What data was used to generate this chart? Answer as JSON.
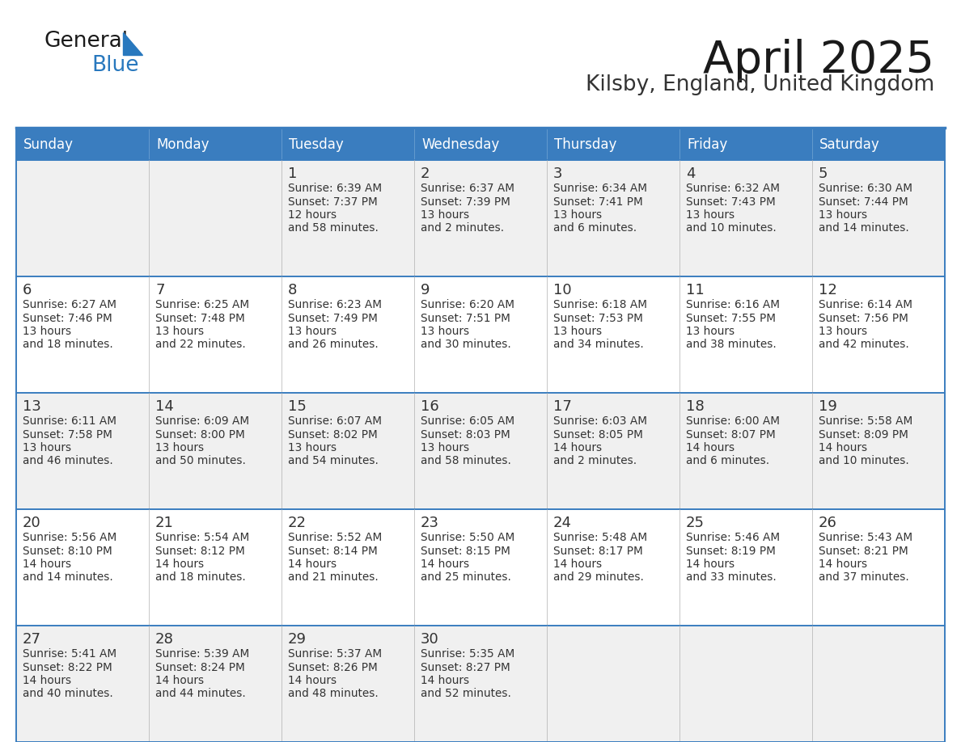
{
  "title": "April 2025",
  "subtitle": "Kilsby, England, United Kingdom",
  "days_of_week": [
    "Sunday",
    "Monday",
    "Tuesday",
    "Wednesday",
    "Thursday",
    "Friday",
    "Saturday"
  ],
  "header_bg": "#3a7dbf",
  "header_text_color": "#ffffff",
  "row_bg_odd": "#f0f0f0",
  "row_bg_even": "#ffffff",
  "cell_text_color": "#333333",
  "border_color": "#3a7dbf",
  "title_color": "#1a1a1a",
  "subtitle_color": "#333333",
  "logo_general_color": "#1a1a1a",
  "logo_blue_color": "#2878be",
  "calendar_data": [
    [
      null,
      null,
      {
        "day": 1,
        "sunrise": "6:39 AM",
        "sunset": "7:37 PM",
        "daylight": "12 hours and 58 minutes."
      },
      {
        "day": 2,
        "sunrise": "6:37 AM",
        "sunset": "7:39 PM",
        "daylight": "13 hours and 2 minutes."
      },
      {
        "day": 3,
        "sunrise": "6:34 AM",
        "sunset": "7:41 PM",
        "daylight": "13 hours and 6 minutes."
      },
      {
        "day": 4,
        "sunrise": "6:32 AM",
        "sunset": "7:43 PM",
        "daylight": "13 hours and 10 minutes."
      },
      {
        "day": 5,
        "sunrise": "6:30 AM",
        "sunset": "7:44 PM",
        "daylight": "13 hours and 14 minutes."
      }
    ],
    [
      {
        "day": 6,
        "sunrise": "6:27 AM",
        "sunset": "7:46 PM",
        "daylight": "13 hours and 18 minutes."
      },
      {
        "day": 7,
        "sunrise": "6:25 AM",
        "sunset": "7:48 PM",
        "daylight": "13 hours and 22 minutes."
      },
      {
        "day": 8,
        "sunrise": "6:23 AM",
        "sunset": "7:49 PM",
        "daylight": "13 hours and 26 minutes."
      },
      {
        "day": 9,
        "sunrise": "6:20 AM",
        "sunset": "7:51 PM",
        "daylight": "13 hours and 30 minutes."
      },
      {
        "day": 10,
        "sunrise": "6:18 AM",
        "sunset": "7:53 PM",
        "daylight": "13 hours and 34 minutes."
      },
      {
        "day": 11,
        "sunrise": "6:16 AM",
        "sunset": "7:55 PM",
        "daylight": "13 hours and 38 minutes."
      },
      {
        "day": 12,
        "sunrise": "6:14 AM",
        "sunset": "7:56 PM",
        "daylight": "13 hours and 42 minutes."
      }
    ],
    [
      {
        "day": 13,
        "sunrise": "6:11 AM",
        "sunset": "7:58 PM",
        "daylight": "13 hours and 46 minutes."
      },
      {
        "day": 14,
        "sunrise": "6:09 AM",
        "sunset": "8:00 PM",
        "daylight": "13 hours and 50 minutes."
      },
      {
        "day": 15,
        "sunrise": "6:07 AM",
        "sunset": "8:02 PM",
        "daylight": "13 hours and 54 minutes."
      },
      {
        "day": 16,
        "sunrise": "6:05 AM",
        "sunset": "8:03 PM",
        "daylight": "13 hours and 58 minutes."
      },
      {
        "day": 17,
        "sunrise": "6:03 AM",
        "sunset": "8:05 PM",
        "daylight": "14 hours and 2 minutes."
      },
      {
        "day": 18,
        "sunrise": "6:00 AM",
        "sunset": "8:07 PM",
        "daylight": "14 hours and 6 minutes."
      },
      {
        "day": 19,
        "sunrise": "5:58 AM",
        "sunset": "8:09 PM",
        "daylight": "14 hours and 10 minutes."
      }
    ],
    [
      {
        "day": 20,
        "sunrise": "5:56 AM",
        "sunset": "8:10 PM",
        "daylight": "14 hours and 14 minutes."
      },
      {
        "day": 21,
        "sunrise": "5:54 AM",
        "sunset": "8:12 PM",
        "daylight": "14 hours and 18 minutes."
      },
      {
        "day": 22,
        "sunrise": "5:52 AM",
        "sunset": "8:14 PM",
        "daylight": "14 hours and 21 minutes."
      },
      {
        "day": 23,
        "sunrise": "5:50 AM",
        "sunset": "8:15 PM",
        "daylight": "14 hours and 25 minutes."
      },
      {
        "day": 24,
        "sunrise": "5:48 AM",
        "sunset": "8:17 PM",
        "daylight": "14 hours and 29 minutes."
      },
      {
        "day": 25,
        "sunrise": "5:46 AM",
        "sunset": "8:19 PM",
        "daylight": "14 hours and 33 minutes."
      },
      {
        "day": 26,
        "sunrise": "5:43 AM",
        "sunset": "8:21 PM",
        "daylight": "14 hours and 37 minutes."
      }
    ],
    [
      {
        "day": 27,
        "sunrise": "5:41 AM",
        "sunset": "8:22 PM",
        "daylight": "14 hours and 40 minutes."
      },
      {
        "day": 28,
        "sunrise": "5:39 AM",
        "sunset": "8:24 PM",
        "daylight": "14 hours and 44 minutes."
      },
      {
        "day": 29,
        "sunrise": "5:37 AM",
        "sunset": "8:26 PM",
        "daylight": "14 hours and 48 minutes."
      },
      {
        "day": 30,
        "sunrise": "5:35 AM",
        "sunset": "8:27 PM",
        "daylight": "14 hours and 52 minutes."
      },
      null,
      null,
      null
    ]
  ]
}
